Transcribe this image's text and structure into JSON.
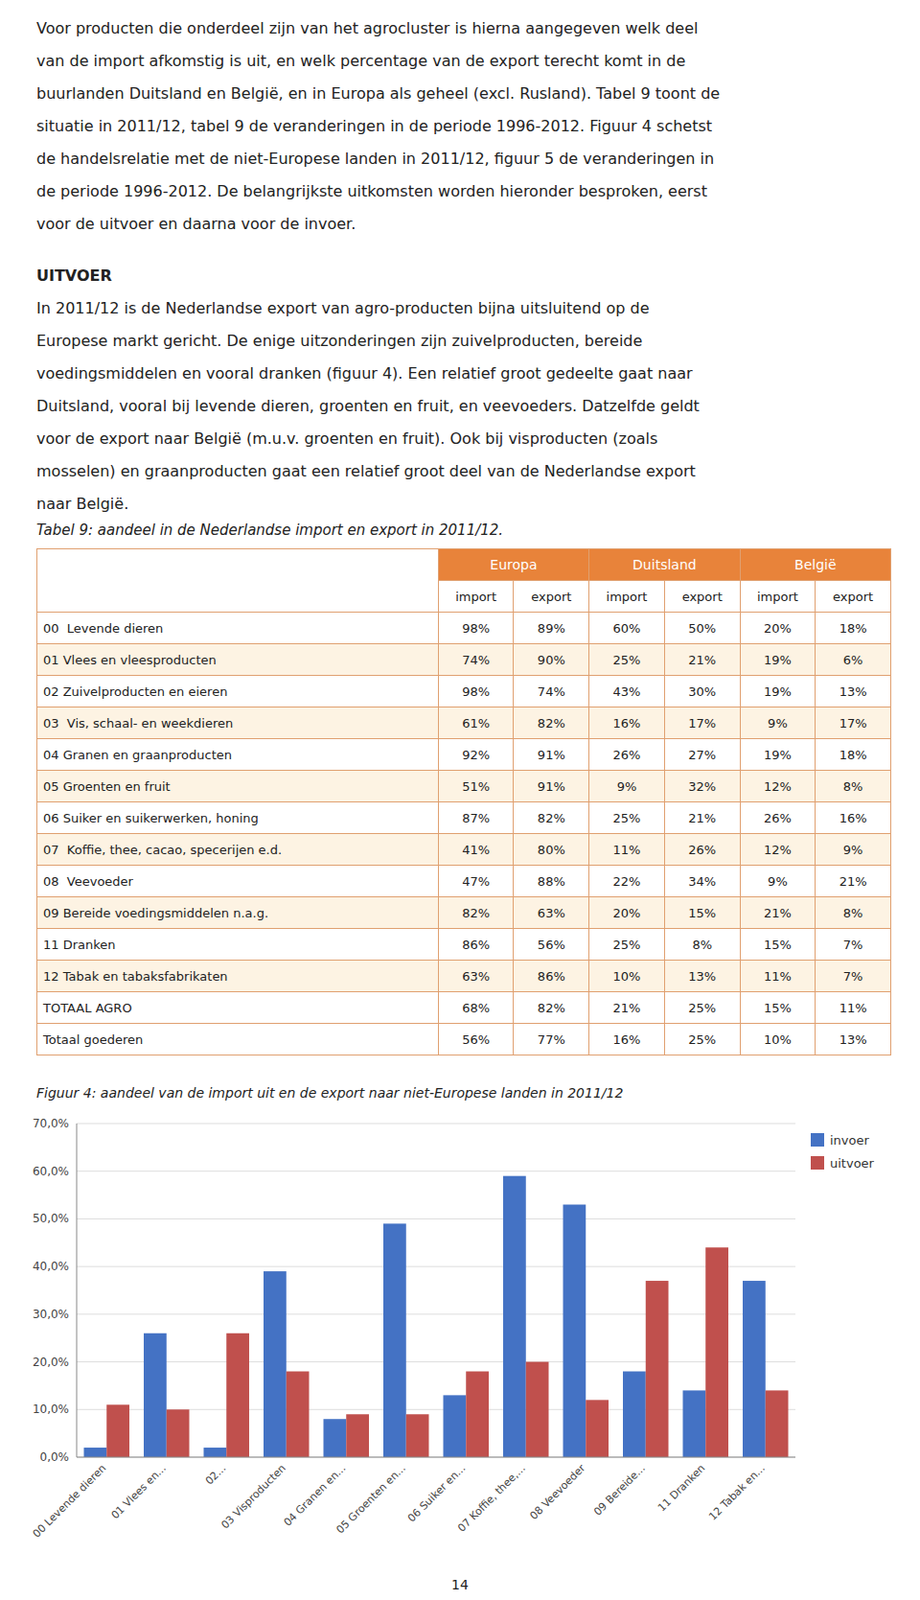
{
  "body_lines": [
    "Voor producten die onderdeel zijn van het agrocluster is hierna aangegeven welk deel",
    "van de import afkomstig is uit, en welk percentage van de export terecht komt in de",
    "buurlanden Duitsland en België, en in Europa als geheel (excl. Rusland). Tabel 9 toont de",
    "situatie in 2011/12, tabel 9 de veranderingen in de periode 1996-2012. Figuur 4 schetst",
    "de handelsrelatie met de niet-Europese landen in 2011/12, figuur 5 de veranderingen in",
    "de periode 1996-2012. De belangrijkste uitkomsten worden hieronder besproken, eerst",
    "voor de uitvoer en daarna voor de invoer."
  ],
  "section_header": "UITVOER",
  "uitvoer_lines": [
    "In 2011/12 is de Nederlandse export van agro-producten bijna uitsluitend op de",
    "Europese markt gericht. De enige uitzonderingen zijn zuivelproducten, bereide",
    "voedingsmiddelen en vooral dranken (figuur 4). Een relatief groot gedeelte gaat naar",
    "Duitsland, vooral bij levende dieren, groenten en fruit, en veevoeders. Datzelfde geldt",
    "voor de export naar België (m.u.v. groenten en fruit). Ook bij visproducten (zoals",
    "mosselen) en graanproducten gaat een relatief groot deel van de Nederlandse export",
    "naar België."
  ],
  "table": {
    "title": "Tabel 9: aandeel in de Nederlandse import en export in 2011/12.",
    "groups": [
      "Europa",
      "Duitsland",
      "België"
    ],
    "subheaders": [
      "import",
      "export",
      "import",
      "export",
      "import",
      "export"
    ],
    "rows": [
      {
        "category": "00  Levende dieren",
        "values": [
          98,
          89,
          60,
          50,
          20,
          18
        ],
        "value_labels": [
          "98%",
          "89%",
          "60%",
          "50%",
          "20%",
          "18%"
        ]
      },
      {
        "category": "01 Vlees en vleesproducten",
        "values": [
          74,
          90,
          25,
          21,
          19,
          6
        ],
        "value_labels": [
          "74%",
          "90%",
          "25%",
          "21%",
          "19%",
          "6%"
        ]
      },
      {
        "category": "02 Zuivelproducten en eieren",
        "values": [
          98,
          74,
          43,
          30,
          19,
          13
        ],
        "value_labels": [
          "98%",
          "74%",
          "43%",
          "30%",
          "19%",
          "13%"
        ]
      },
      {
        "category": "03  Vis, schaal- en weekdieren",
        "values": [
          61,
          82,
          16,
          17,
          9,
          17
        ],
        "value_labels": [
          "61%",
          "82%",
          "16%",
          "17%",
          "9%",
          "17%"
        ]
      },
      {
        "category": "04 Granen en graanproducten",
        "values": [
          92,
          91,
          26,
          27,
          19,
          18
        ],
        "value_labels": [
          "92%",
          "91%",
          "26%",
          "27%",
          "19%",
          "18%"
        ]
      },
      {
        "category": "05 Groenten en fruit",
        "values": [
          51,
          91,
          9,
          32,
          12,
          8
        ],
        "value_labels": [
          "51%",
          "91%",
          "9%",
          "32%",
          "12%",
          "8%"
        ]
      },
      {
        "category": "06 Suiker en suikerwerken, honing",
        "values": [
          87,
          82,
          25,
          21,
          26,
          16
        ],
        "value_labels": [
          "87%",
          "82%",
          "25%",
          "21%",
          "26%",
          "16%"
        ]
      },
      {
        "category": "07  Koffie, thee, cacao, specerijen e.d.",
        "values": [
          41,
          80,
          11,
          26,
          12,
          9
        ],
        "value_labels": [
          "41%",
          "80%",
          "11%",
          "26%",
          "12%",
          "9%"
        ]
      },
      {
        "category": "08  Veevoeder",
        "values": [
          47,
          88,
          22,
          34,
          9,
          21
        ],
        "value_labels": [
          "47%",
          "88%",
          "22%",
          "34%",
          "9%",
          "21%"
        ]
      },
      {
        "category": "09 Bereide voedingsmiddelen n.a.g.",
        "values": [
          82,
          63,
          20,
          15,
          21,
          8
        ],
        "value_labels": [
          "82%",
          "63%",
          "20%",
          "15%",
          "21%",
          "8%"
        ]
      },
      {
        "category": "11 Dranken",
        "values": [
          86,
          56,
          25,
          8,
          15,
          7
        ],
        "value_labels": [
          "86%",
          "56%",
          "25%",
          "8%",
          "15%",
          "7%"
        ]
      },
      {
        "category": "12 Tabak en tabaksfabrikaten",
        "values": [
          63,
          86,
          10,
          13,
          11,
          7
        ],
        "value_labels": [
          "63%",
          "86%",
          "10%",
          "13%",
          "11%",
          "7%"
        ]
      },
      {
        "category": "TOTAAL AGRO",
        "values": [
          68,
          82,
          21,
          25,
          15,
          11
        ],
        "value_labels": [
          "68%",
          "82%",
          "21%",
          "25%",
          "15%",
          "11%"
        ]
      },
      {
        "category": "Totaal goederen",
        "values": [
          56,
          77,
          16,
          25,
          10,
          13
        ],
        "value_labels": [
          "56%",
          "77%",
          "16%",
          "25%",
          "10%",
          "13%"
        ]
      }
    ]
  },
  "chart_data": {
    "type": "bar",
    "title": "Figuur 4: aandeel van de import uit en de export naar niet-Europese landen in 2011/12",
    "categories": [
      "00 Levende dieren",
      "01 Vlees en...",
      "02...",
      "03 Visproducten",
      "04 Granen en...",
      "05 Groenten en...",
      "06 Suiker en...",
      "07 Koffie, thee,...",
      "08 Veevoeder",
      "09 Bereide...",
      "11 Dranken",
      "12 Tabak en..."
    ],
    "series": [
      {
        "name": "invoer",
        "color": "#4472C4",
        "values": [
          2,
          26,
          2,
          39,
          8,
          49,
          13,
          59,
          53,
          18,
          14,
          37
        ]
      },
      {
        "name": "uitvoer",
        "color": "#C0504D",
        "values": [
          11,
          10,
          26,
          18,
          9,
          9,
          18,
          20,
          12,
          37,
          44,
          14
        ]
      }
    ],
    "ylim": [
      0,
      70
    ],
    "yticks": [
      {
        "value": 0,
        "label": "0,0%"
      },
      {
        "value": 10,
        "label": "10,0%"
      },
      {
        "value": 20,
        "label": "20,0%"
      },
      {
        "value": 30,
        "label": "30,0%"
      },
      {
        "value": 40,
        "label": "40,0%"
      },
      {
        "value": 50,
        "label": "50,0%"
      },
      {
        "value": 60,
        "label": "60,0%"
      },
      {
        "value": 70,
        "label": "70,0%"
      }
    ],
    "grid": true,
    "legend": "right"
  },
  "page_number": "14"
}
